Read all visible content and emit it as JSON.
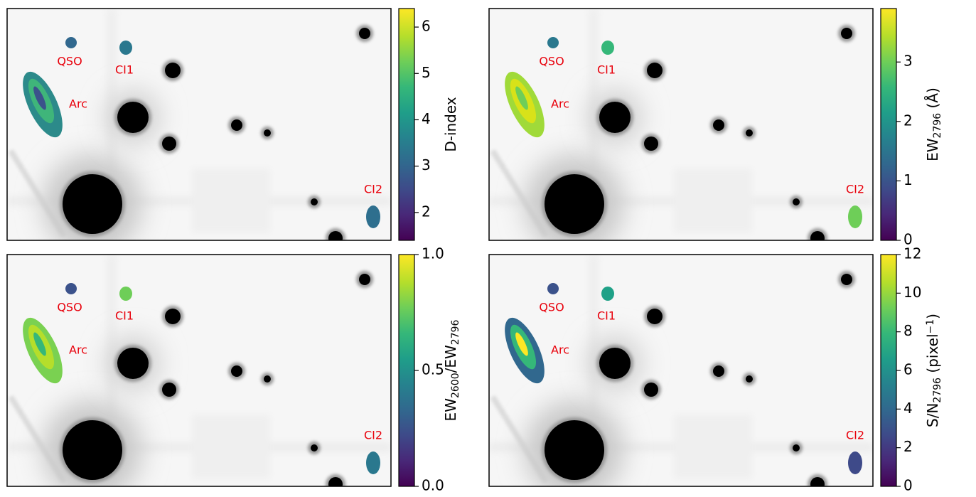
{
  "chart_data": [
    {
      "type": "image",
      "annotations": [
        "QSO",
        "CI1",
        "Arc",
        "CI2"
      ],
      "colorbar_label": [
        {
          "text": "D-index"
        }
      ],
      "clim": [
        1.4,
        6.4
      ],
      "cticks": [
        2,
        3,
        4,
        5,
        6
      ]
    },
    {
      "type": "image",
      "annotations": [
        "QSO",
        "CI1",
        "Arc",
        "CI2"
      ],
      "colorbar_label": [
        {
          "text": "EW"
        },
        {
          "text": "2796",
          "sub": true
        },
        {
          "text": " (Å)"
        }
      ],
      "clim": [
        0,
        3.9
      ],
      "cticks": [
        0,
        1,
        2,
        3
      ]
    },
    {
      "type": "image",
      "annotations": [
        "QSO",
        "CI1",
        "Arc",
        "CI2"
      ],
      "colorbar_label": [
        {
          "text": "EW"
        },
        {
          "text": "2600",
          "sub": true
        },
        {
          "text": "/EW"
        },
        {
          "text": "2796",
          "sub": true
        }
      ],
      "clim": [
        0,
        1
      ],
      "cticks": [
        {
          "value": 0,
          "label": "0.0"
        },
        0.5,
        {
          "value": 1,
          "label": "1.0"
        }
      ]
    },
    {
      "type": "image",
      "annotations": [
        "QSO",
        "CI1",
        "Arc",
        "CI2"
      ],
      "colorbar_label": [
        {
          "text": "S/N"
        },
        {
          "text": "2796",
          "sub": true
        },
        {
          "text": " (pixel"
        },
        {
          "text": "−1",
          "sup": true
        },
        {
          "text": ")"
        }
      ],
      "clim": [
        0,
        12
      ],
      "cticks": [
        0,
        2,
        4,
        6,
        8,
        10,
        12
      ]
    }
  ]
}
